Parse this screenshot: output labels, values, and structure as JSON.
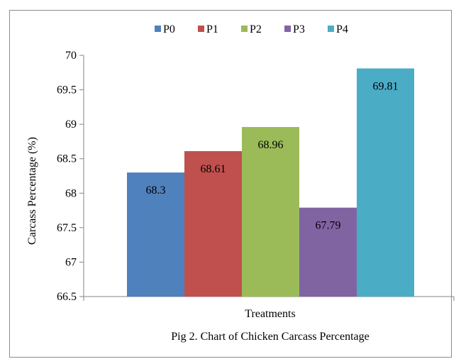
{
  "chart_data": {
    "type": "bar",
    "categories": [
      ""
    ],
    "series": [
      {
        "name": "P0",
        "values": [
          68.3
        ],
        "color": "#4f81bd"
      },
      {
        "name": "P1",
        "values": [
          68.61
        ],
        "color": "#c0504d"
      },
      {
        "name": "P2",
        "values": [
          68.96
        ],
        "color": "#9bbb59"
      },
      {
        "name": "P3",
        "values": [
          67.79
        ],
        "color": "#8064a2"
      },
      {
        "name": "P4",
        "values": [
          69.81
        ],
        "color": "#4bacc6"
      }
    ],
    "data_labels": [
      "68.3",
      "68.61",
      "68.96",
      "67.79",
      "69.81"
    ],
    "y_ticks": [
      "66.5",
      "67",
      "67.5",
      "68",
      "68.5",
      "69",
      "69.5",
      "70"
    ],
    "ylim": [
      66.5,
      70
    ],
    "ylabel": "Carcass Percentage (%)",
    "xlabel": "Treatments",
    "caption": "Pig 2. Chart of Chicken Carcass Percentage",
    "legend_position": "top",
    "grid": false
  }
}
